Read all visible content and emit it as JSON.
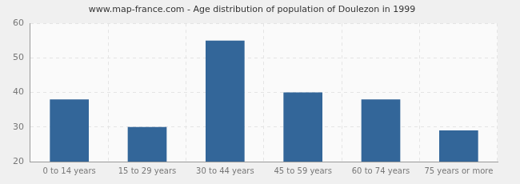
{
  "chart_data": {
    "type": "bar",
    "title": "www.map-france.com - Age distribution of population of Doulezon in 1999",
    "categories": [
      "0 to 14 years",
      "15 to 29 years",
      "30 to 44 years",
      "45 to 59 years",
      "60 to 74 years",
      "75 years or more"
    ],
    "values": [
      38,
      30,
      55,
      40,
      38,
      29
    ],
    "color": "#336699",
    "ylim": [
      20,
      60
    ],
    "yticks": [
      20,
      30,
      40,
      50,
      60
    ],
    "grid": true
  }
}
